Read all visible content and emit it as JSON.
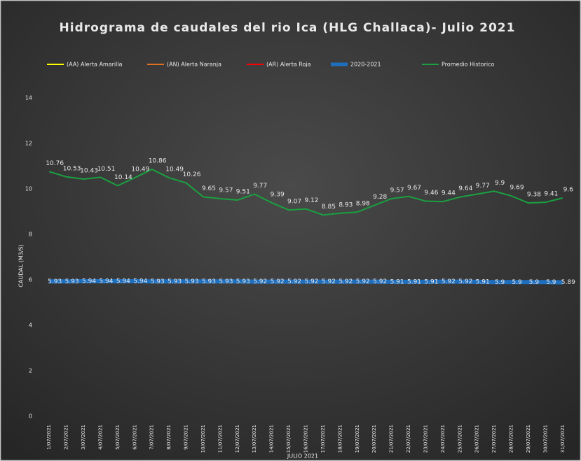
{
  "chart_data": {
    "type": "line",
    "title": "Hidrograma de caudales del rio Ica (HLG Challaca)- Julio 2021",
    "ylabel": "CAUDAL (M3/S)",
    "xlabel": "JULIO 2021",
    "categories": [
      "1/07/2021",
      "2/07/2021",
      "3/07/2021",
      "4/07/2021",
      "5/07/2021",
      "6/07/2021",
      "7/07/2021",
      "8/07/2021",
      "9/07/2021",
      "10/07/2021",
      "11/07/2021",
      "12/07/2021",
      "13/07/2021",
      "14/07/2021",
      "15/07/2021",
      "16/07/2021",
      "17/07/2021",
      "18/07/2021",
      "19/07/2021",
      "20/07/2021",
      "21/07/2021",
      "22/07/2021",
      "23/07/2021",
      "24/07/2021",
      "25/07/2021",
      "26/07/2021",
      "27/07/2021",
      "28/07/2021",
      "29/07/2021",
      "30/07/2021",
      "31/07/2021"
    ],
    "series": [
      {
        "name": "(AA) Alerta Amarilla",
        "color": "#ffff00",
        "values": [
          null,
          null,
          null,
          null,
          null,
          null,
          null,
          null,
          null,
          null,
          null,
          null,
          null,
          null,
          null,
          null,
          null,
          null,
          null,
          null,
          null,
          null,
          null,
          null,
          null,
          null,
          null,
          null,
          null,
          null,
          null
        ]
      },
      {
        "name": "(AN) Alerta Naranja",
        "color": "#e07020",
        "values": [
          null,
          null,
          null,
          null,
          null,
          null,
          null,
          null,
          null,
          null,
          null,
          null,
          null,
          null,
          null,
          null,
          null,
          null,
          null,
          null,
          null,
          null,
          null,
          null,
          null,
          null,
          null,
          null,
          null,
          null,
          null
        ]
      },
      {
        "name": "(AR) Alerta Roja",
        "color": "#ff0000",
        "values": [
          null,
          null,
          null,
          null,
          null,
          null,
          null,
          null,
          null,
          null,
          null,
          null,
          null,
          null,
          null,
          null,
          null,
          null,
          null,
          null,
          null,
          null,
          null,
          null,
          null,
          null,
          null,
          null,
          null,
          null,
          null
        ]
      },
      {
        "name": "2020-2021",
        "color": "#1f6fbf",
        "values": [
          5.93,
          5.93,
          5.94,
          5.94,
          5.94,
          5.94,
          5.93,
          5.93,
          5.93,
          5.93,
          5.93,
          5.93,
          5.92,
          5.92,
          5.92,
          5.92,
          5.92,
          5.92,
          5.92,
          5.92,
          5.91,
          5.91,
          5.91,
          5.92,
          5.92,
          5.91,
          5.9,
          5.9,
          5.9,
          5.9,
          5.89
        ]
      },
      {
        "name": "Promedio Historico",
        "color": "#1aa040",
        "values": [
          10.76,
          10.53,
          10.43,
          10.51,
          10.14,
          10.49,
          10.86,
          10.49,
          10.26,
          9.65,
          9.57,
          9.51,
          9.77,
          9.39,
          9.07,
          9.12,
          8.85,
          8.93,
          8.98,
          9.28,
          9.57,
          9.67,
          9.46,
          9.44,
          9.64,
          9.77,
          9.9,
          9.69,
          9.38,
          9.41,
          9.6
        ]
      }
    ],
    "ylim": [
      0,
      14
    ],
    "yticks": [
      0,
      2,
      4,
      6,
      8,
      10,
      12,
      14
    ],
    "grid": false
  }
}
